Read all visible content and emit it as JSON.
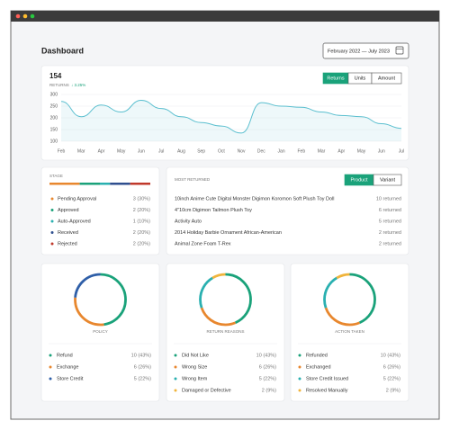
{
  "header": {
    "title": "Dashboard",
    "date_range": "February 2022 — July 2023"
  },
  "summary": {
    "value": 154,
    "label": "RETURNS",
    "change": "↓ 3.25%"
  },
  "toggle": [
    "Returns",
    "Units",
    "Amount"
  ],
  "chart": {
    "type": "line",
    "categories": [
      "Feb",
      "Mar",
      "Apr",
      "May",
      "Jun",
      "Jul",
      "Aug",
      "Sep",
      "Oct",
      "Nov",
      "Dec",
      "Jan",
      "Feb",
      "Mar",
      "Apr",
      "May",
      "Jun",
      "Jul"
    ],
    "values": [
      270,
      205,
      255,
      225,
      275,
      240,
      205,
      180,
      165,
      135,
      265,
      250,
      245,
      225,
      210,
      205,
      175,
      155
    ],
    "color": "#5bbfcf",
    "ylim": [
      100,
      300
    ],
    "yticks": [
      300,
      250,
      200,
      150,
      100
    ],
    "grid": true
  },
  "stage": {
    "title": "STAGE",
    "items": [
      {
        "name": "Pending Approval",
        "color": "#e8872e",
        "value": 3,
        "value_label": "3 (30%)"
      },
      {
        "name": "Approved",
        "color": "#1aa27a",
        "value": 2,
        "value_label": "2 (20%)"
      },
      {
        "name": "Auto-Approved",
        "color": "#2ab0b0",
        "value": 1,
        "value_label": "1 (10%)"
      },
      {
        "name": "Received",
        "color": "#2f4f8f",
        "value": 2,
        "value_label": "2 (20%)"
      },
      {
        "name": "Rejected",
        "color": "#c0392b",
        "value": 2,
        "value_label": "2 (20%)"
      }
    ]
  },
  "most_returned": {
    "title": "MOST RETURNED",
    "toggle": [
      "Product",
      "Variant"
    ],
    "items": [
      {
        "name": "10inch Anime Cute Digital Monster Digimon Koromon Soft Plush Toy Doll",
        "value": 10,
        "value_label": "10 returned"
      },
      {
        "name": "4\"10cm Digimon Tailmon Plush Toy",
        "value": 6,
        "value_label": "6 returned"
      },
      {
        "name": "Activity Auto",
        "value": 5,
        "value_label": "5 returned"
      },
      {
        "name": "2014 Holiday Barbie Ornament African-American",
        "value": 2,
        "value_label": "2 returned"
      },
      {
        "name": "Animal Zone Foam T-Rex",
        "value": 2,
        "value_label": "2 returned"
      }
    ]
  },
  "donuts": [
    {
      "title": "POLICY",
      "items": [
        {
          "name": "Refund",
          "color": "#1aa27a",
          "value": 10,
          "value_label": "10 (43%)"
        },
        {
          "name": "Exchange",
          "color": "#e8872e",
          "value": 6,
          "value_label": "6 (26%)"
        },
        {
          "name": "Store Credit",
          "color": "#2f5fa8",
          "value": 5,
          "value_label": "5 (22%)"
        }
      ]
    },
    {
      "title": "RETURN REASONS",
      "items": [
        {
          "name": "Did Not Like",
          "color": "#1aa27a",
          "value": 10,
          "value_label": "10 (43%)"
        },
        {
          "name": "Wrong Size",
          "color": "#e8872e",
          "value": 6,
          "value_label": "6 (26%)"
        },
        {
          "name": "Wrong Item",
          "color": "#2ab0b0",
          "value": 5,
          "value_label": "5 (22%)"
        },
        {
          "name": "Damaged or Defective",
          "color": "#f0b43c",
          "value": 2,
          "value_label": "2 (9%)"
        }
      ]
    },
    {
      "title": "ACTION TAKEN",
      "items": [
        {
          "name": "Refunded",
          "color": "#1aa27a",
          "value": 10,
          "value_label": "10 (43%)"
        },
        {
          "name": "Exchanged",
          "color": "#e8872e",
          "value": 6,
          "value_label": "6 (26%)"
        },
        {
          "name": "Store Credit Issued",
          "color": "#2ab0b0",
          "value": 5,
          "value_label": "5 (22%)"
        },
        {
          "name": "Resolved Manually",
          "color": "#f0b43c",
          "value": 2,
          "value_label": "2 (9%)"
        }
      ]
    }
  ]
}
